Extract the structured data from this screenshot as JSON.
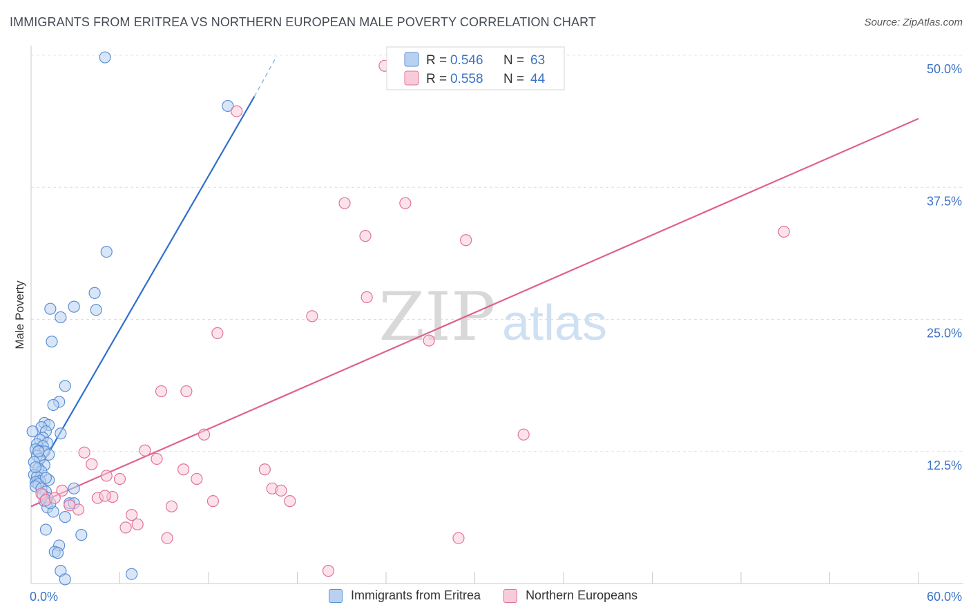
{
  "title": "IMMIGRANTS FROM ERITREA VS NORTHERN EUROPEAN MALE POVERTY CORRELATION CHART",
  "source": "Source: ZipAtlas.com",
  "watermark": {
    "zip": "ZIP",
    "atlas": "atlas"
  },
  "legend_stats": [
    {
      "r_label": "R = ",
      "r_value": "0.546",
      "n_label": "N = ",
      "n_value": "63"
    },
    {
      "r_label": "R = ",
      "r_value": "0.558",
      "n_label": "N = ",
      "n_value": "44"
    }
  ],
  "chart_data": {
    "type": "scatter",
    "title": "IMMIGRANTS FROM ERITREA VS NORTHERN EUROPEAN MALE POVERTY CORRELATION CHART",
    "xlabel": "",
    "ylabel": "Male Poverty",
    "xlim": [
      0,
      60
    ],
    "ylim": [
      0,
      50
    ],
    "x_tick_labels": [
      {
        "value": 0,
        "label": "0.0%"
      },
      {
        "value": 60,
        "label": "60.0%"
      }
    ],
    "y_tick_labels": [
      {
        "value": 12.5,
        "label": "12.5%"
      },
      {
        "value": 25,
        "label": "25.0%"
      },
      {
        "value": 37.5,
        "label": "37.5%"
      },
      {
        "value": 50,
        "label": "50.0%"
      }
    ],
    "grid": true,
    "series": [
      {
        "name": "Immigrants from Eritrea",
        "color": "#5b8fd6",
        "fill": "#b9d1f0",
        "r": 0.546,
        "n": 63,
        "trend": {
          "x0": 0,
          "y0": 9.5,
          "x1": 15.1,
          "y1": 46.1,
          "dash_to_x": 16.6,
          "dash_to_y": 49.9
        },
        "points": [
          [
            5.0,
            49.8
          ],
          [
            13.3,
            45.2
          ],
          [
            5.1,
            31.4
          ],
          [
            4.3,
            27.5
          ],
          [
            1.3,
            26.0
          ],
          [
            2.9,
            26.2
          ],
          [
            4.4,
            25.9
          ],
          [
            2.0,
            25.2
          ],
          [
            1.4,
            22.9
          ],
          [
            2.3,
            18.7
          ],
          [
            1.9,
            17.2
          ],
          [
            1.5,
            16.9
          ],
          [
            0.9,
            15.2
          ],
          [
            1.2,
            15.0
          ],
          [
            0.7,
            14.8
          ],
          [
            1.0,
            14.4
          ],
          [
            2.0,
            14.2
          ],
          [
            0.1,
            14.4
          ],
          [
            0.8,
            13.8
          ],
          [
            0.6,
            13.6
          ],
          [
            1.1,
            13.3
          ],
          [
            0.4,
            13.2
          ],
          [
            0.8,
            13.0
          ],
          [
            0.5,
            12.6
          ],
          [
            0.3,
            12.7
          ],
          [
            0.9,
            12.5
          ],
          [
            1.2,
            12.2
          ],
          [
            0.4,
            12.1
          ],
          [
            0.6,
            11.8
          ],
          [
            0.2,
            11.5
          ],
          [
            0.9,
            11.2
          ],
          [
            0.5,
            10.9
          ],
          [
            0.7,
            10.6
          ],
          [
            0.2,
            10.3
          ],
          [
            0.4,
            10.1
          ],
          [
            1.2,
            9.8
          ],
          [
            0.6,
            9.7
          ],
          [
            0.3,
            9.6
          ],
          [
            0.5,
            9.4
          ],
          [
            0.3,
            9.2
          ],
          [
            0.7,
            9.0
          ],
          [
            2.9,
            9.0
          ],
          [
            1.0,
            8.7
          ],
          [
            0.8,
            8.4
          ],
          [
            1.1,
            8.1
          ],
          [
            0.9,
            7.8
          ],
          [
            2.6,
            7.6
          ],
          [
            2.9,
            7.6
          ],
          [
            1.1,
            7.2
          ],
          [
            1.5,
            6.8
          ],
          [
            2.3,
            6.3
          ],
          [
            1.0,
            5.1
          ],
          [
            3.4,
            4.6
          ],
          [
            1.9,
            3.6
          ],
          [
            1.6,
            3.0
          ],
          [
            1.8,
            2.9
          ],
          [
            2.0,
            1.2
          ],
          [
            2.3,
            0.4
          ],
          [
            6.8,
            0.9
          ],
          [
            0.5,
            12.5
          ],
          [
            1.0,
            10.0
          ],
          [
            0.3,
            11.0
          ],
          [
            1.3,
            7.6
          ]
        ]
      },
      {
        "name": "Northern Europeans",
        "color": "#e0739a",
        "fill": "#f9cbd9",
        "r": 0.558,
        "n": 44,
        "trend": {
          "x0": 0,
          "y0": 7.3,
          "x1": 60,
          "y1": 44.0
        },
        "points": [
          [
            23.9,
            49.0
          ],
          [
            13.9,
            44.7
          ],
          [
            21.2,
            36.0
          ],
          [
            25.3,
            36.0
          ],
          [
            22.6,
            32.9
          ],
          [
            29.4,
            32.5
          ],
          [
            50.9,
            33.3
          ],
          [
            22.7,
            27.1
          ],
          [
            19.0,
            25.3
          ],
          [
            12.6,
            23.7
          ],
          [
            26.9,
            23.0
          ],
          [
            8.8,
            18.2
          ],
          [
            10.5,
            18.2
          ],
          [
            11.7,
            14.1
          ],
          [
            33.3,
            14.1
          ],
          [
            3.6,
            12.4
          ],
          [
            7.7,
            12.6
          ],
          [
            8.5,
            11.8
          ],
          [
            4.1,
            11.3
          ],
          [
            10.3,
            10.8
          ],
          [
            15.8,
            10.8
          ],
          [
            5.1,
            10.2
          ],
          [
            6.0,
            9.9
          ],
          [
            11.2,
            9.9
          ],
          [
            16.3,
            9.0
          ],
          [
            16.9,
            8.8
          ],
          [
            2.1,
            8.8
          ],
          [
            4.5,
            8.1
          ],
          [
            5.5,
            8.2
          ],
          [
            0.7,
            8.5
          ],
          [
            17.5,
            7.8
          ],
          [
            12.3,
            7.8
          ],
          [
            1.0,
            7.9
          ],
          [
            9.5,
            7.3
          ],
          [
            3.2,
            7.0
          ],
          [
            6.8,
            6.5
          ],
          [
            7.2,
            5.6
          ],
          [
            6.4,
            5.3
          ],
          [
            9.2,
            4.3
          ],
          [
            28.9,
            4.3
          ],
          [
            20.1,
            1.2
          ],
          [
            2.6,
            7.4
          ],
          [
            1.6,
            8.1
          ],
          [
            5.0,
            8.3
          ]
        ]
      }
    ]
  }
}
